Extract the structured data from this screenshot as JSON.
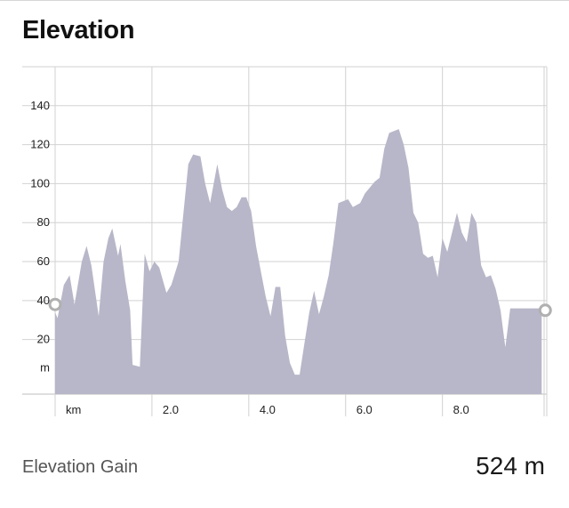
{
  "header": {
    "title": "Elevation"
  },
  "chart_data": {
    "type": "area",
    "x_unit_label": "km",
    "y_unit_label": "m",
    "xlim": [
      0,
      10.1
    ],
    "ylim": [
      -8,
      160
    ],
    "y_ticks": [
      20,
      40,
      60,
      80,
      100,
      120,
      140
    ],
    "x_ticks": [
      2.0,
      4.0,
      6.0,
      8.0
    ],
    "x_tick_labels": [
      "2.0",
      "4.0",
      "6.0",
      "8.0"
    ],
    "y_tick_labels": [
      "20",
      "40",
      "60",
      "80",
      "100",
      "120",
      "140"
    ],
    "grid": true,
    "fill_color": "#b8b7c9",
    "x": [
      0,
      0.05,
      0.18,
      0.3,
      0.4,
      0.55,
      0.65,
      0.75,
      0.9,
      1.0,
      1.1,
      1.18,
      1.3,
      1.35,
      1.45,
      1.55,
      1.6,
      1.75,
      1.85,
      1.95,
      2.05,
      2.15,
      2.3,
      2.4,
      2.55,
      2.75,
      2.85,
      3.0,
      3.1,
      3.2,
      3.35,
      3.45,
      3.55,
      3.65,
      3.75,
      3.85,
      3.95,
      4.05,
      4.15,
      4.25,
      4.35,
      4.45,
      4.55,
      4.65,
      4.75,
      4.85,
      4.95,
      5.05,
      5.15,
      5.25,
      5.35,
      5.45,
      5.55,
      5.65,
      5.75,
      5.85,
      5.95,
      6.05,
      6.15,
      6.3,
      6.4,
      6.5,
      6.6,
      6.7,
      6.8,
      6.9,
      7.0,
      7.1,
      7.2,
      7.3,
      7.4,
      7.5,
      7.6,
      7.7,
      7.8,
      7.9,
      8.0,
      8.1,
      8.2,
      8.3,
      8.4,
      8.5,
      8.6,
      8.7,
      8.8,
      8.9,
      9.0,
      9.1,
      9.2,
      9.3,
      9.4,
      9.5,
      9.6,
      9.7,
      9.8,
      9.9,
      10.0,
      10.05
    ],
    "y": [
      34,
      31,
      48,
      53,
      38,
      60,
      68,
      58,
      32,
      60,
      72,
      77,
      63,
      69,
      50,
      35,
      7,
      6,
      64,
      55,
      60,
      57,
      44,
      48,
      60,
      110,
      115,
      114,
      100,
      90,
      110,
      97,
      88,
      86,
      88,
      93,
      93,
      86,
      68,
      55,
      42,
      32,
      47,
      47,
      22,
      8,
      2,
      2,
      18,
      34,
      45,
      33,
      42,
      53,
      70,
      90,
      91,
      92,
      88,
      90,
      95,
      98,
      101,
      103,
      118,
      126,
      127,
      128,
      120,
      108,
      85,
      80,
      64,
      62,
      63,
      52,
      72,
      65,
      75,
      85,
      75,
      70,
      85,
      80,
      58,
      52,
      53,
      46,
      35,
      16,
      36,
      36,
      36,
      36,
      36,
      36,
      36,
      36
    ],
    "range_markers": [
      {
        "x": 0,
        "y": 38
      },
      {
        "x": 10.05,
        "y": 35
      }
    ]
  },
  "summary": {
    "label": "Elevation Gain",
    "value": "524 m"
  }
}
